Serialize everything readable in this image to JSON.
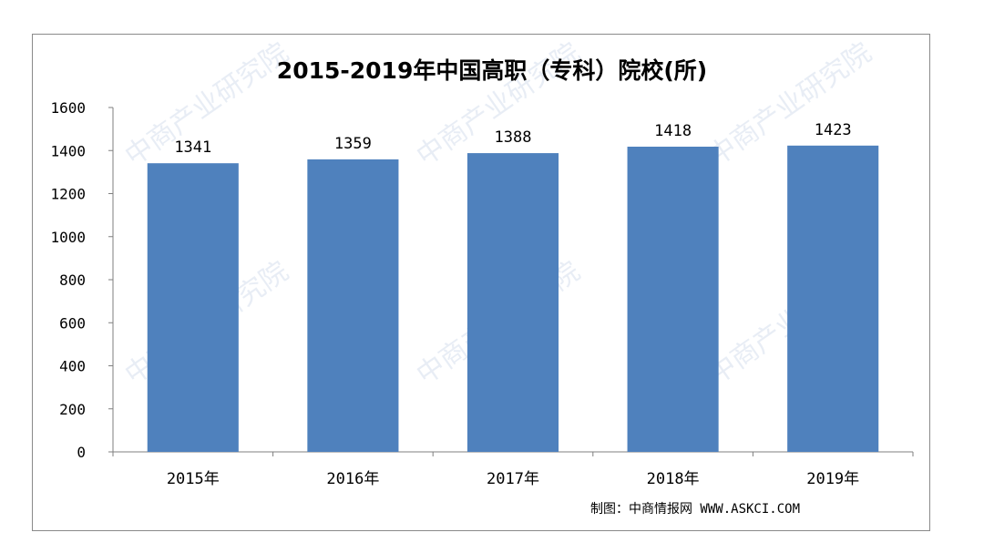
{
  "chart_data": {
    "type": "bar",
    "title": "2015-2019年中国高职（专科）院校(所)",
    "categories": [
      "2015年",
      "2016年",
      "2017年",
      "2018年",
      "2019年"
    ],
    "values": [
      1341,
      1359,
      1388,
      1418,
      1423
    ],
    "ylim": [
      0,
      1600
    ],
    "yticks": [
      0,
      200,
      400,
      600,
      800,
      1000,
      1200,
      1400,
      1600
    ],
    "xlabel": "",
    "ylabel": "",
    "grid": false,
    "legend": "none",
    "data_labels": true,
    "bar_color": "#4f81bd"
  },
  "credit": "制图：中商情报网 WWW.ASKCI.COM",
  "watermark_text": "中商产业研究院"
}
